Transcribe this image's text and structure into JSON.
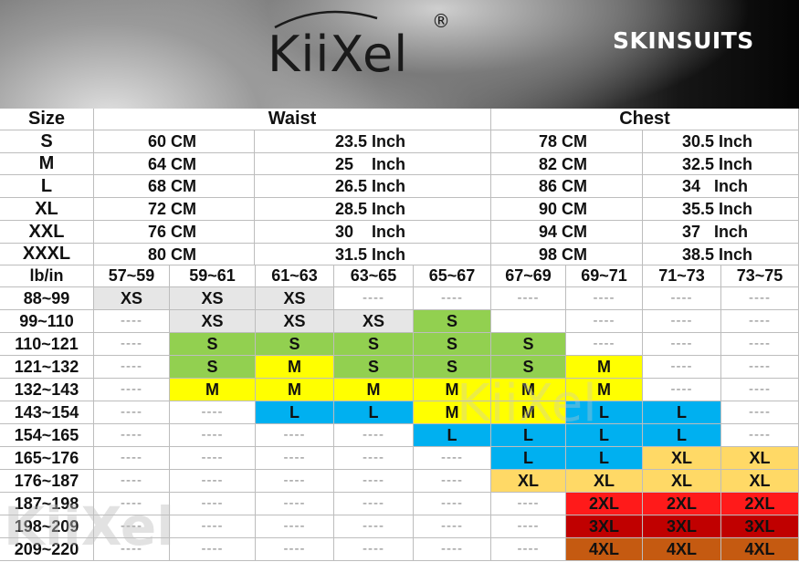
{
  "brand": {
    "logo_text": "KiiXel",
    "registered_mark": "®",
    "product_title": "SKINSUITS"
  },
  "table": {
    "size_header": "Size",
    "waist_header": "Waist",
    "chest_header": "Chest",
    "measurements": [
      {
        "size": "S",
        "waist_cm": "60 CM",
        "waist_inch": "23.5 Inch",
        "chest_cm": "78 CM",
        "chest_inch": "30.5 Inch"
      },
      {
        "size": "M",
        "waist_cm": "64 CM",
        "waist_inch": "25    Inch",
        "chest_cm": "82 CM",
        "chest_inch": "32.5 Inch"
      },
      {
        "size": "L",
        "waist_cm": "68 CM",
        "waist_inch": "26.5 Inch",
        "chest_cm": "86 CM",
        "chest_inch": "34   Inch"
      },
      {
        "size": "XL",
        "waist_cm": "72 CM",
        "waist_inch": "28.5 Inch",
        "chest_cm": "90 CM",
        "chest_inch": "35.5 Inch"
      },
      {
        "size": "XXL",
        "waist_cm": "76 CM",
        "waist_inch": "30    Inch",
        "chest_cm": "94 CM",
        "chest_inch": "37   Inch"
      },
      {
        "size": "XXXL",
        "waist_cm": "80 CM",
        "waist_inch": "31.5 Inch",
        "chest_cm": "98 CM",
        "chest_inch": "38.5 Inch"
      }
    ],
    "corner_label": "lb/in",
    "height_ranges": [
      "57~59",
      "59~61",
      "61~63",
      "63~65",
      "65~67",
      "67~69",
      "69~71",
      "71~73",
      "73~75"
    ],
    "weight_ranges": [
      "88~99",
      "99~110",
      "110~121",
      "121~132",
      "132~143",
      "143~154",
      "154~165",
      "165~176",
      "176~187",
      "187~198",
      "198~209",
      "209~220"
    ],
    "dash": "----",
    "cells": [
      [
        "XS",
        "XS",
        "XS",
        "----",
        "----",
        "----",
        "----",
        "----",
        "----"
      ],
      [
        "----",
        "XS",
        "XS",
        "XS",
        "S",
        "",
        "----",
        "----",
        "----"
      ],
      [
        "----",
        "S",
        "S",
        "S",
        "S",
        "S",
        "----",
        "----",
        "----"
      ],
      [
        "----",
        "S",
        "M",
        "S",
        "S",
        "S",
        "M",
        "----",
        "----"
      ],
      [
        "----",
        "M",
        "M",
        "M",
        "M",
        "M",
        "M",
        "----",
        "----"
      ],
      [
        "----",
        "----",
        "L",
        "L",
        "M",
        "M",
        "L",
        "L",
        "----"
      ],
      [
        "----",
        "----",
        "----",
        "----",
        "L",
        "L",
        "L",
        "L",
        "----"
      ],
      [
        "----",
        "----",
        "----",
        "----",
        "----",
        "L",
        "L",
        "XL",
        "XL"
      ],
      [
        "----",
        "----",
        "----",
        "----",
        "----",
        "XL",
        "XL",
        "XL",
        "XL"
      ],
      [
        "----",
        "----",
        "----",
        "----",
        "----",
        "----",
        "2XL",
        "2XL",
        "2XL"
      ],
      [
        "----",
        "----",
        "----",
        "----",
        "----",
        "----",
        "3XL",
        "3XL",
        "3XL"
      ],
      [
        "----",
        "----",
        "----",
        "----",
        "----",
        "----",
        "4XL",
        "4XL",
        "4XL"
      ]
    ]
  },
  "colors": {
    "XS": "#e6e6e6",
    "S": "#92d050",
    "M": "#ffff00",
    "L": "#00b0f0",
    "XL": "#ffd966",
    "2XL": "#ff1a1a",
    "3XL": "#c00000",
    "4XL": "#c55a11",
    "none": "#ffffff"
  }
}
